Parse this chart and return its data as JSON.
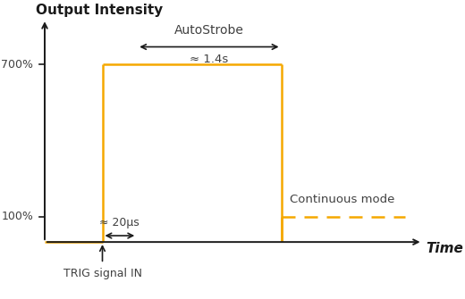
{
  "title": "Output Intensity",
  "xlabel": "Time",
  "background_color": "#ffffff",
  "signal_color": "#f5a800",
  "text_color": "#404040",
  "axis_color": "#1a1a1a",
  "pulse_start": 2.0,
  "pulse_end": 3.2,
  "pulse_width_label": "≈ 20μs",
  "strobe_start": 3.2,
  "strobe_end": 8.2,
  "strobe_width_label": "≈ 1.4s",
  "strobe_label": "AutoStrobe",
  "continuous_start": 8.2,
  "continuous_end": 12.5,
  "continuous_label": "Continuous mode",
  "trig_label": "TRIG signal IN",
  "low_level": 0.0,
  "high_level": 7.0,
  "continuous_level": 1.0,
  "xlim": [
    -0.3,
    13.5
  ],
  "ylim": [
    -2.2,
    9.5
  ]
}
